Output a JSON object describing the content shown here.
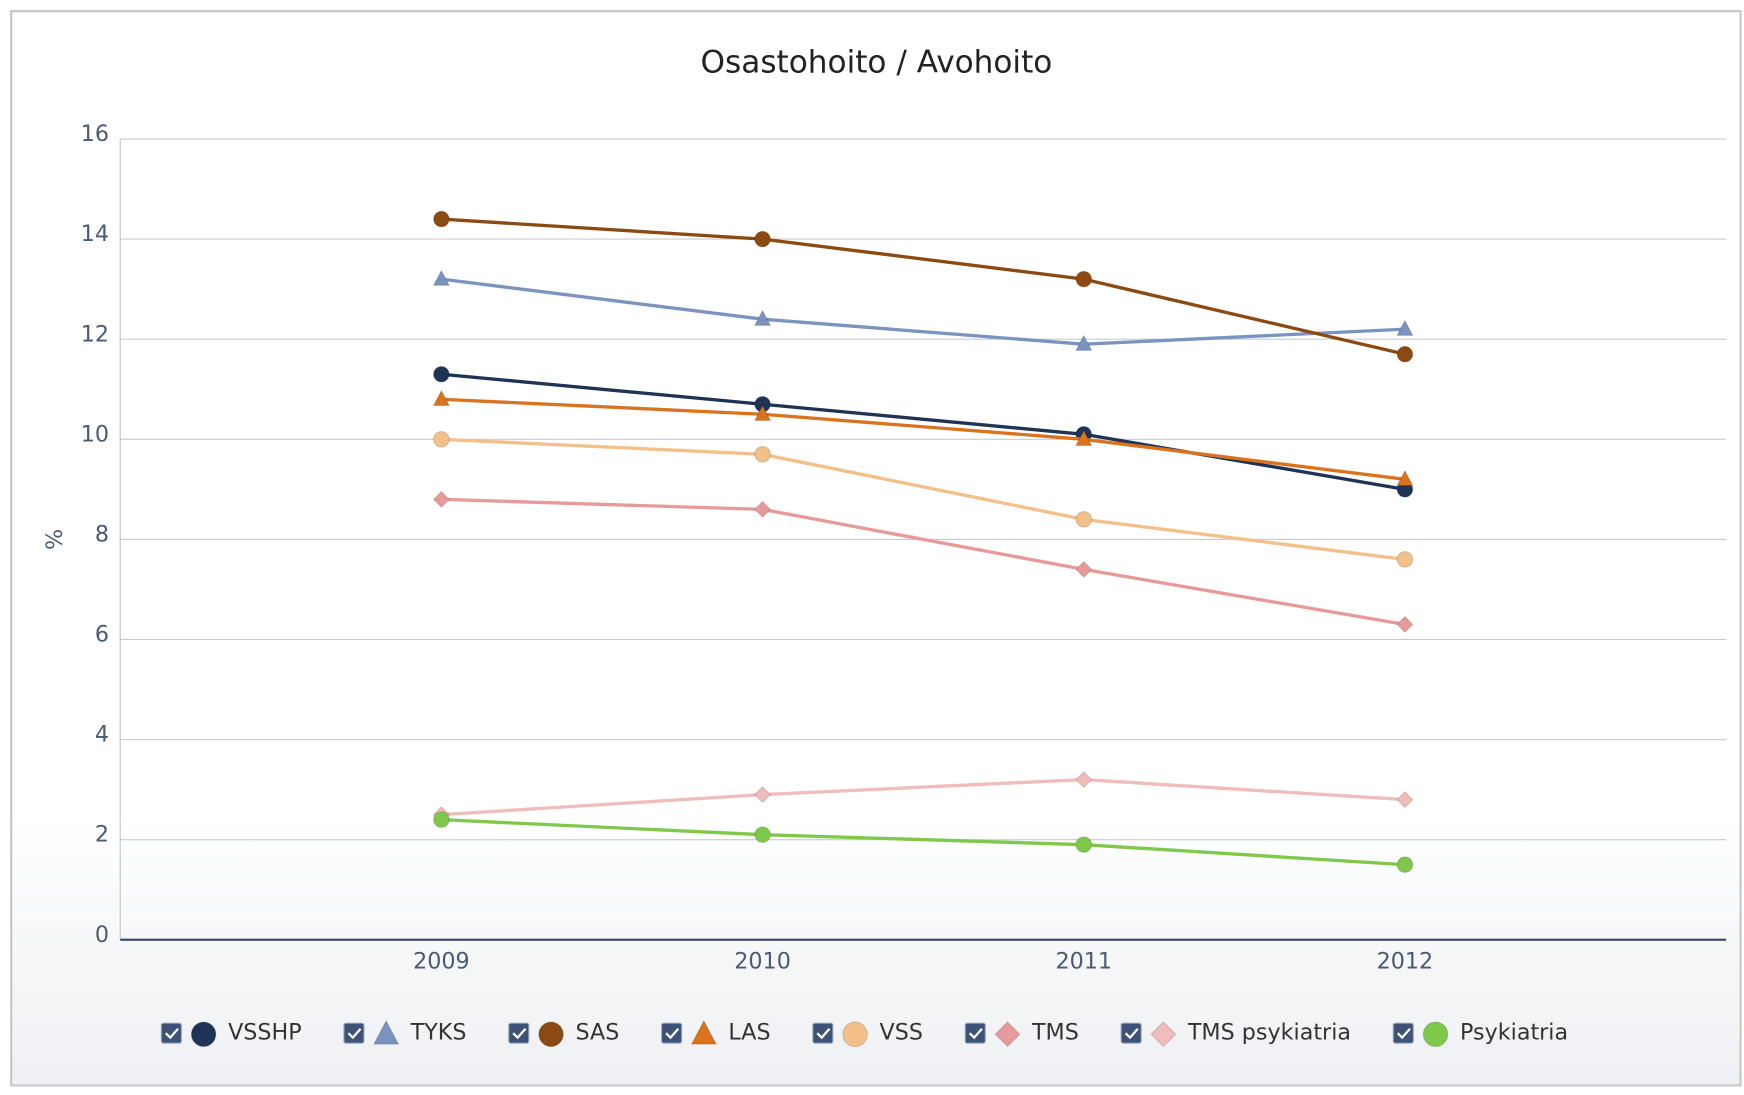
{
  "chart_data": {
    "type": "line",
    "title": "Osastohoito / Avohoito",
    "y_label": "%",
    "categories": [
      "2009",
      "2010",
      "2011",
      "2012"
    ],
    "ylim": [
      0,
      16
    ],
    "yticks": [
      0,
      2,
      4,
      6,
      8,
      10,
      12,
      14,
      16
    ],
    "grid": true,
    "legend": "bottom",
    "series": [
      {
        "name": "VSSHP",
        "color": "#1f3355",
        "marker": "circle",
        "values": [
          11.3,
          10.7,
          10.1,
          9.0
        ]
      },
      {
        "name": "TYKS",
        "color": "#7b93bf",
        "marker": "triangle",
        "values": [
          13.2,
          12.4,
          11.9,
          12.2
        ]
      },
      {
        "name": "SAS",
        "color": "#8a4a12",
        "marker": "circle",
        "values": [
          14.4,
          14.0,
          13.2,
          11.7
        ]
      },
      {
        "name": "LAS",
        "color": "#d9731e",
        "marker": "triangle",
        "values": [
          10.8,
          10.5,
          10.0,
          9.2
        ]
      },
      {
        "name": "VSS",
        "color": "#f4c08a",
        "marker": "circle",
        "values": [
          10.0,
          9.7,
          8.4,
          7.6
        ]
      },
      {
        "name": "TMS",
        "color": "#e89a9a",
        "marker": "diamond",
        "values": [
          8.8,
          8.6,
          7.4,
          6.3
        ]
      },
      {
        "name": "TMS psykiatria",
        "color": "#f0bcbc",
        "marker": "diamond",
        "values": [
          2.5,
          2.9,
          3.2,
          2.8
        ]
      },
      {
        "name": "Psykiatria",
        "color": "#7fc94a",
        "marker": "circle",
        "values": [
          2.4,
          2.1,
          1.9,
          1.5
        ]
      }
    ]
  }
}
